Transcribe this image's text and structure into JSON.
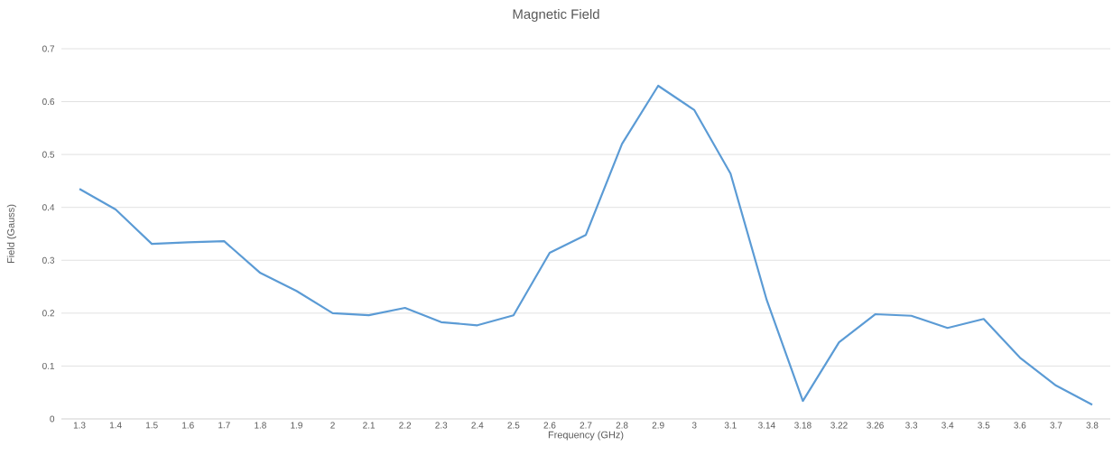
{
  "chart_data": {
    "type": "line",
    "title": "Magnetic Field",
    "xlabel": "Frequency (GHz)",
    "ylabel": "Field (Gauss)",
    "categories": [
      "1.3",
      "1.4",
      "1.5",
      "1.6",
      "1.7",
      "1.8",
      "1.9",
      "2",
      "2.1",
      "2.2",
      "2.3",
      "2.4",
      "2.5",
      "2.6",
      "2.7",
      "2.8",
      "2.9",
      "3",
      "3.1",
      "3.14",
      "3.18",
      "3.22",
      "3.26",
      "3.3",
      "3.4",
      "3.5",
      "3.6",
      "3.7",
      "3.8"
    ],
    "series": [
      {
        "color": "#5b9bd5",
        "values": [
          0.435,
          0.396,
          0.331,
          0.334,
          0.336,
          0.276,
          0.242,
          0.2,
          0.196,
          0.21,
          0.183,
          0.177,
          0.196,
          0.314,
          0.348,
          0.52,
          0.63,
          0.584,
          0.464,
          0.225,
          0.034,
          0.145,
          0.198,
          0.195,
          0.172,
          0.189,
          0.116,
          0.063,
          0.027
        ]
      }
    ],
    "ylim": [
      0,
      0.7
    ],
    "yticks": [
      0,
      0.1,
      0.2,
      0.3,
      0.4,
      0.5,
      0.6,
      0.7
    ],
    "grid": "y"
  }
}
